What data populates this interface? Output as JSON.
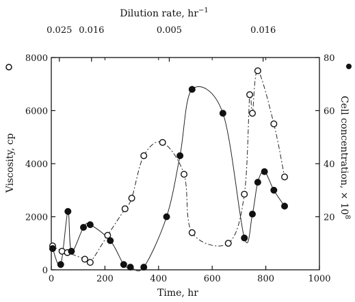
{
  "chart_data": {
    "type": "scatter",
    "title": "",
    "top_axis": {
      "label": "Dilution rate, hr",
      "label_superscript": "−1",
      "segment_labels": [
        {
          "text": "0.025",
          "x": 30
        },
        {
          "text": "0.016",
          "x": 150
        },
        {
          "text": "0.005",
          "x": 440
        },
        {
          "text": "0.016",
          "x": 790
        }
      ]
    },
    "xlabel": "Time, hr",
    "xlim": [
      0,
      1000
    ],
    "x_ticks": [
      0,
      200,
      400,
      600,
      800,
      1000
    ],
    "left_axis": {
      "label": "Viscosity, cp",
      "ylim": [
        0,
        8000
      ],
      "ticks": [
        0,
        2000,
        4000,
        6000,
        8000
      ],
      "marker": "open-circle"
    },
    "right_axis": {
      "label": "Cell concentration, × 10",
      "label_superscript": "8",
      "ylim": [
        0,
        80
      ],
      "ticks": [
        20,
        40,
        60,
        80
      ],
      "marker": "filled-circle"
    },
    "series": [
      {
        "axis": "left",
        "marker": "open",
        "x": [
          5,
          40,
          60,
          125,
          145,
          210,
          275,
          300,
          345,
          415,
          495,
          525,
          660,
          720,
          740,
          750,
          770,
          830,
          870
        ],
        "y": [
          900,
          700,
          650,
          400,
          280,
          1300,
          2300,
          2700,
          4300,
          4800,
          3600,
          1400,
          1000,
          2850,
          6600,
          5900,
          7500,
          5500,
          3500
        ]
      },
      {
        "axis": "right",
        "marker": "filled",
        "x": [
          5,
          35,
          62,
          75,
          120,
          145,
          220,
          270,
          295,
          345,
          430,
          480,
          525,
          640,
          720,
          750,
          770,
          795,
          830,
          870
        ],
        "y": [
          8,
          2,
          22,
          7,
          16,
          17,
          11,
          2,
          1,
          1,
          20,
          43,
          68,
          59,
          12,
          21,
          33,
          37,
          30,
          24
        ]
      }
    ],
    "grid": false
  }
}
